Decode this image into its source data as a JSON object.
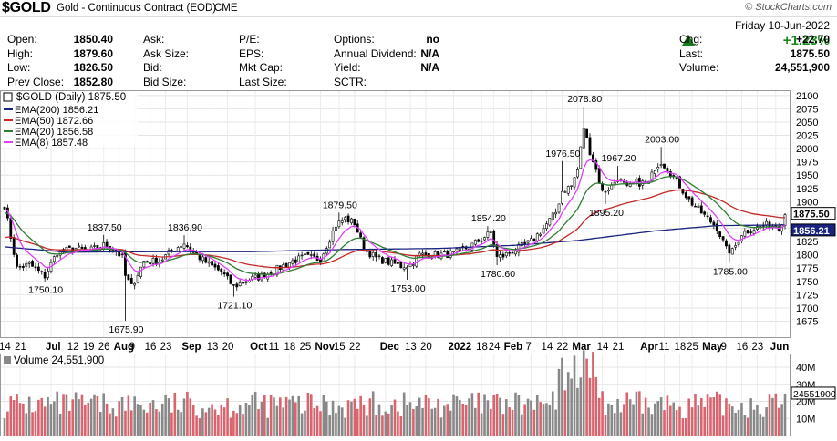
{
  "header": {
    "symbol": "$GOLD",
    "description": "Gold - Continuous Contract (EOD)",
    "exchange": "CME",
    "brand": "© StockCharts.com"
  },
  "quote": {
    "date": "Friday  10-Jun-2022",
    "pct_change": "+1.23%",
    "rows": [
      {
        "l1": "Open:",
        "v1": "1850.40",
        "l2": "Ask:",
        "l3": "P/E:",
        "l4": "Options:",
        "v4": "no",
        "r": "Chg:",
        "rv": "+22.70"
      },
      {
        "l1": "High:",
        "v1": "1879.60",
        "l2": "Ask Size:",
        "l3": "EPS:",
        "l4": "Annual Dividend:",
        "v4": "N/A",
        "r": "Last:",
        "rv": "1875.50"
      },
      {
        "l1": "Low:",
        "v1": "1826.50",
        "l2": "Bid:",
        "l3": "Mkt Cap:",
        "l4": "Yield:",
        "v4": "N/A",
        "r": "Volume:",
        "rv": "24,551,900"
      },
      {
        "l1": "Prev Close:",
        "v1": "1852.80",
        "l2": "Bid Size:",
        "l3": "Last Size:",
        "l4": "SCTR:",
        "v4": "",
        "r": "",
        "rv": ""
      }
    ]
  },
  "colors": {
    "candle_up": "#ffffff",
    "candle_down": "#000000",
    "ema200": "#1a237e",
    "ema50": "#c62828",
    "ema20": "#2e7d32",
    "ema8": "#e040fb",
    "volume_up": "#888888",
    "volume_down": "#d9646e",
    "last_box": "#ffffff"
  },
  "chart_data": {
    "type": "candlestick",
    "title": "$GOLD (Daily) 1875.50",
    "legend": [
      {
        "name": "EMA(200) 1856.21",
        "color": "#1a237e"
      },
      {
        "name": "EMA(50) 1872.66",
        "color": "#c62828"
      },
      {
        "name": "EMA(20) 1856.58",
        "color": "#2e7d32"
      },
      {
        "name": "EMA(8) 1857.48",
        "color": "#e040fb"
      }
    ],
    "ylim": [
      1645,
      2110
    ],
    "y_ticks": [
      1675,
      1700,
      1725,
      1750,
      1775,
      1800,
      1825,
      1850,
      1875,
      1900,
      1925,
      1950,
      1975,
      2000,
      2025,
      2050,
      2075,
      2100
    ],
    "last_labels": [
      "1875.50",
      "1856.21"
    ],
    "x_tick_labels": [
      {
        "i": 0,
        "t": "14"
      },
      {
        "i": 5,
        "t": "21"
      },
      {
        "i": 15,
        "t": "Jul",
        "bold": true
      },
      {
        "i": 22,
        "t": "12"
      },
      {
        "i": 27,
        "t": "19"
      },
      {
        "i": 32,
        "t": "26"
      },
      {
        "i": 37,
        "t": "Aug",
        "bold": true
      },
      {
        "i": 42,
        "t": "9"
      },
      {
        "i": 47,
        "t": "16"
      },
      {
        "i": 52,
        "t": "23"
      },
      {
        "i": 59,
        "t": "Sep",
        "bold": true
      },
      {
        "i": 67,
        "t": "13"
      },
      {
        "i": 72,
        "t": "20"
      },
      {
        "i": 81,
        "t": "Oct",
        "bold": true
      },
      {
        "i": 87,
        "t": "11"
      },
      {
        "i": 92,
        "t": "18"
      },
      {
        "i": 97,
        "t": "25"
      },
      {
        "i": 102,
        "t": "Nov",
        "bold": true
      },
      {
        "i": 108,
        "t": "15"
      },
      {
        "i": 113,
        "t": "22"
      },
      {
        "i": 123,
        "t": "Dec",
        "bold": true
      },
      {
        "i": 131,
        "t": "13"
      },
      {
        "i": 136,
        "t": "20"
      },
      {
        "i": 145,
        "t": "2022",
        "bold": true
      },
      {
        "i": 154,
        "t": "18"
      },
      {
        "i": 158,
        "t": "24"
      },
      {
        "i": 163,
        "t": "Feb",
        "bold": true
      },
      {
        "i": 170,
        "t": "7"
      },
      {
        "i": 175,
        "t": "14"
      },
      {
        "i": 180,
        "t": "22"
      },
      {
        "i": 185,
        "t": "Mar",
        "bold": true
      },
      {
        "i": 193,
        "t": "14"
      },
      {
        "i": 198,
        "t": "21"
      },
      {
        "i": 207,
        "t": "Apr",
        "bold": true
      },
      {
        "i": 213,
        "t": "11"
      },
      {
        "i": 218,
        "t": "18"
      },
      {
        "i": 222,
        "t": "25"
      },
      {
        "i": 227,
        "t": "May",
        "bold": true
      },
      {
        "i": 233,
        "t": "9"
      },
      {
        "i": 238,
        "t": "16"
      },
      {
        "i": 243,
        "t": "23"
      },
      {
        "i": 249,
        "t": "Jun",
        "bold": true
      }
    ],
    "annotations": [
      {
        "i": 39,
        "v": 1675.9,
        "t": "1675.90",
        "pos": "below"
      },
      {
        "i": 13,
        "v": 1750.1,
        "t": "1750.10",
        "pos": "below"
      },
      {
        "i": 32,
        "v": 1837.5,
        "t": "1837.50",
        "pos": "above"
      },
      {
        "i": 58,
        "v": 1836.9,
        "t": "1836.90",
        "pos": "above"
      },
      {
        "i": 74,
        "v": 1721.1,
        "t": "1721.10",
        "pos": "below"
      },
      {
        "i": 108,
        "v": 1879.5,
        "t": "1879.50",
        "pos": "above"
      },
      {
        "i": 130,
        "v": 1753.0,
        "t": "1753.00",
        "pos": "below"
      },
      {
        "i": 156,
        "v": 1854.2,
        "t": "1854.20",
        "pos": "above"
      },
      {
        "i": 159,
        "v": 1780.6,
        "t": "1780.60",
        "pos": "below"
      },
      {
        "i": 180,
        "v": 1976.5,
        "t": "1976.50",
        "pos": "above"
      },
      {
        "i": 187,
        "v": 2078.8,
        "t": "2078.80",
        "pos": "above"
      },
      {
        "i": 194,
        "v": 1895.2,
        "t": "1895.20",
        "pos": "below"
      },
      {
        "i": 198,
        "v": 1967.2,
        "t": "1967.20",
        "pos": "above"
      },
      {
        "i": 212,
        "v": 2003.0,
        "t": "2003.00",
        "pos": "above"
      },
      {
        "i": 234,
        "v": 1785.0,
        "t": "1785.00",
        "pos": "below"
      }
    ],
    "series_points": [
      [
        0,
        1893
      ],
      [
        4,
        1775
      ],
      [
        8,
        1782
      ],
      [
        13,
        1760
      ],
      [
        17,
        1805
      ],
      [
        23,
        1812
      ],
      [
        27,
        1807
      ],
      [
        32,
        1818
      ],
      [
        35,
        1812
      ],
      [
        38,
        1795
      ],
      [
        39,
        1760
      ],
      [
        41,
        1740
      ],
      [
        45,
        1788
      ],
      [
        50,
        1788
      ],
      [
        55,
        1812
      ],
      [
        58,
        1822
      ],
      [
        62,
        1799
      ],
      [
        66,
        1782
      ],
      [
        70,
        1768
      ],
      [
        74,
        1740
      ],
      [
        78,
        1752
      ],
      [
        82,
        1758
      ],
      [
        87,
        1770
      ],
      [
        92,
        1786
      ],
      [
        97,
        1796
      ],
      [
        102,
        1792
      ],
      [
        104,
        1818
      ],
      [
        107,
        1856
      ],
      [
        110,
        1868
      ],
      [
        113,
        1860
      ],
      [
        116,
        1812
      ],
      [
        120,
        1794
      ],
      [
        124,
        1786
      ],
      [
        128,
        1779
      ],
      [
        131,
        1781
      ],
      [
        134,
        1800
      ],
      [
        140,
        1800
      ],
      [
        145,
        1802
      ],
      [
        150,
        1815
      ],
      [
        154,
        1830
      ],
      [
        157,
        1842
      ],
      [
        159,
        1795
      ],
      [
        161,
        1798
      ],
      [
        165,
        1810
      ],
      [
        170,
        1825
      ],
      [
        174,
        1850
      ],
      [
        178,
        1880
      ],
      [
        180,
        1920
      ],
      [
        183,
        1930
      ],
      [
        185,
        1960
      ],
      [
        187,
        2040
      ],
      [
        189,
        1995
      ],
      [
        191,
        1960
      ],
      [
        193,
        1918
      ],
      [
        196,
        1930
      ],
      [
        198,
        1945
      ],
      [
        201,
        1925
      ],
      [
        204,
        1936
      ],
      [
        208,
        1935
      ],
      [
        210,
        1965
      ],
      [
        212,
        1976
      ],
      [
        215,
        1955
      ],
      [
        218,
        1930
      ],
      [
        221,
        1903
      ],
      [
        224,
        1885
      ],
      [
        227,
        1868
      ],
      [
        230,
        1852
      ],
      [
        233,
        1810
      ],
      [
        235,
        1806
      ],
      [
        238,
        1840
      ],
      [
        241,
        1848
      ],
      [
        244,
        1853
      ],
      [
        247,
        1857
      ],
      [
        250,
        1852
      ],
      [
        252,
        1875.5
      ]
    ],
    "ema200_points": [
      [
        0,
        1815
      ],
      [
        20,
        1805
      ],
      [
        50,
        1806
      ],
      [
        80,
        1806
      ],
      [
        110,
        1810
      ],
      [
        140,
        1812
      ],
      [
        165,
        1818
      ],
      [
        185,
        1827
      ],
      [
        210,
        1845
      ],
      [
        230,
        1855
      ],
      [
        252,
        1856.21
      ]
    ],
    "volume": {
      "ylim": [
        0,
        48
      ],
      "ticks": [
        10,
        20,
        30,
        40
      ],
      "tick_labels": [
        "10M",
        "20M",
        "30M",
        "40M"
      ],
      "label": "Volume 24,551,900",
      "last_label": "24551900",
      "last": 24.5519
    }
  }
}
